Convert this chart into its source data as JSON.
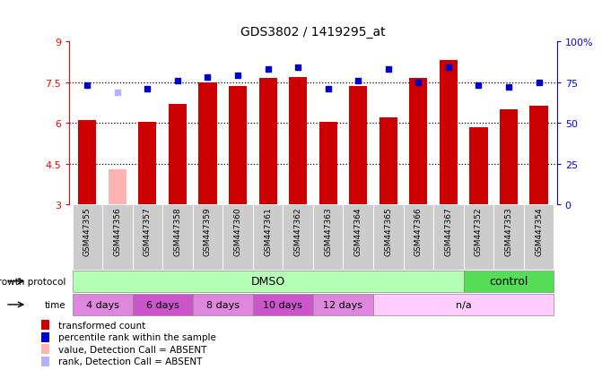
{
  "title": "GDS3802 / 1419295_at",
  "samples": [
    "GSM447355",
    "GSM447356",
    "GSM447357",
    "GSM447358",
    "GSM447359",
    "GSM447360",
    "GSM447361",
    "GSM447362",
    "GSM447363",
    "GSM447364",
    "GSM447365",
    "GSM447366",
    "GSM447367",
    "GSM447352",
    "GSM447353",
    "GSM447354"
  ],
  "bar_values": [
    6.1,
    4.3,
    6.05,
    6.7,
    7.5,
    7.35,
    7.65,
    7.7,
    6.05,
    7.35,
    6.2,
    7.65,
    8.3,
    5.85,
    6.5,
    6.65
  ],
  "bar_absent": [
    false,
    true,
    false,
    false,
    false,
    false,
    false,
    false,
    false,
    false,
    false,
    false,
    false,
    false,
    false,
    false
  ],
  "percentile_values": [
    73,
    69,
    71,
    76,
    78,
    79,
    83,
    84,
    71,
    76,
    83,
    75,
    84,
    73,
    72,
    75
  ],
  "percentile_absent": [
    false,
    true,
    false,
    false,
    false,
    false,
    false,
    false,
    false,
    false,
    false,
    false,
    false,
    false,
    false,
    false
  ],
  "ylim": [
    3,
    9
  ],
  "y_ticks": [
    3,
    4.5,
    6,
    7.5,
    9
  ],
  "y_tick_labels": [
    "3",
    "4.5",
    "6",
    "7.5",
    "9"
  ],
  "right_y_ticks": [
    0,
    25,
    50,
    75,
    100
  ],
  "right_y_tick_labels": [
    "0",
    "25",
    "50",
    "75",
    "100%"
  ],
  "bar_color": "#cc0000",
  "bar_absent_color": "#ffb3b3",
  "dot_color": "#0000cc",
  "dot_absent_color": "#b3b3ff",
  "dmso_color": "#b3ffb3",
  "control_color": "#55dd55",
  "time_colors": [
    "#dd88dd",
    "#cc55cc",
    "#dd88dd",
    "#cc55cc",
    "#dd88dd",
    "#ffccff"
  ],
  "time_groups": [
    {
      "label": "4 days",
      "start": 0,
      "end": 2
    },
    {
      "label": "6 days",
      "start": 2,
      "end": 4
    },
    {
      "label": "8 days",
      "start": 4,
      "end": 6
    },
    {
      "label": "10 days",
      "start": 6,
      "end": 8
    },
    {
      "label": "12 days",
      "start": 8,
      "end": 10
    },
    {
      "label": "n/a",
      "start": 13,
      "end": 16
    }
  ],
  "sample_bg_color": "#cccccc",
  "dotted_lines": [
    4.5,
    6.0,
    7.5
  ],
  "legend_items": [
    {
      "label": "transformed count",
      "color": "#cc0000"
    },
    {
      "label": "percentile rank within the sample",
      "color": "#0000cc"
    },
    {
      "label": "value, Detection Call = ABSENT",
      "color": "#ffb3b3"
    },
    {
      "label": "rank, Detection Call = ABSENT",
      "color": "#b3b3ff"
    }
  ]
}
